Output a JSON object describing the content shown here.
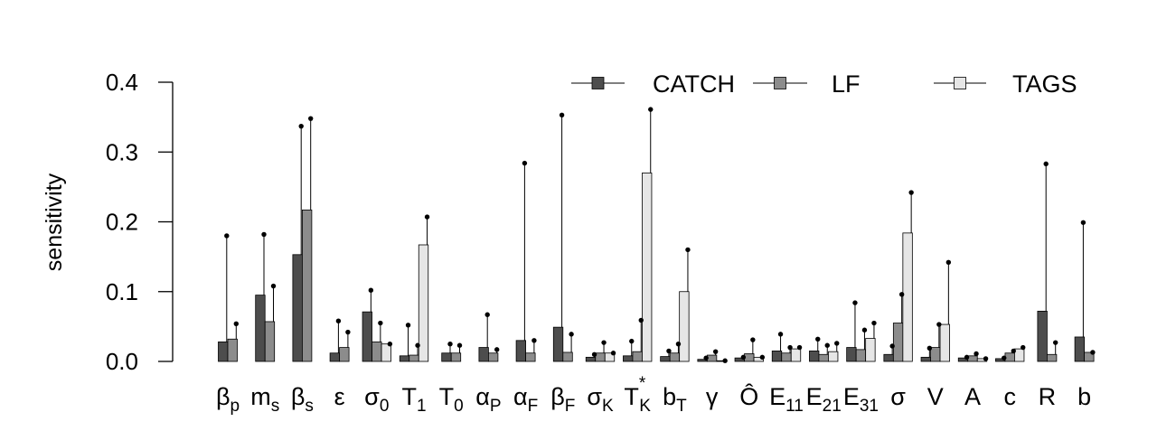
{
  "chart_data": {
    "type": "bar",
    "title": "",
    "xlabel": "",
    "ylabel": "sensitivity",
    "ylim": [
      0,
      0.4
    ],
    "yticks": [
      "0.0",
      "0.1",
      "0.2",
      "0.3",
      "0.4"
    ],
    "ytick_values": [
      0,
      0.1,
      0.2,
      0.3,
      0.4
    ],
    "grid": false,
    "legend_position": "top-right",
    "error_bars": "upper whisker with dot at tip",
    "categories": [
      {
        "id": "beta_p",
        "base": "β",
        "sub": "p",
        "sup": ""
      },
      {
        "id": "m_s",
        "base": "m",
        "sub": "s",
        "sup": ""
      },
      {
        "id": "beta_s",
        "base": "β",
        "sub": "s",
        "sup": ""
      },
      {
        "id": "epsilon",
        "base": "ε",
        "sub": "",
        "sup": ""
      },
      {
        "id": "sigma_0",
        "base": "σ",
        "sub": "0",
        "sup": ""
      },
      {
        "id": "T_1",
        "base": "T",
        "sub": "1",
        "sup": ""
      },
      {
        "id": "T_0",
        "base": "T",
        "sub": "0",
        "sup": ""
      },
      {
        "id": "alpha_P",
        "base": "α",
        "sub": "P",
        "sup": ""
      },
      {
        "id": "alpha_F",
        "base": "α",
        "sub": "F",
        "sup": ""
      },
      {
        "id": "beta_F",
        "base": "β",
        "sub": "F",
        "sup": ""
      },
      {
        "id": "sigma_K",
        "base": "σ",
        "sub": "K",
        "sup": ""
      },
      {
        "id": "T_K_star",
        "base": "T",
        "sub": "K",
        "sup": "*"
      },
      {
        "id": "b_T",
        "base": "b",
        "sub": "T",
        "sup": ""
      },
      {
        "id": "gamma",
        "base": "γ",
        "sub": "",
        "sup": ""
      },
      {
        "id": "O_hat",
        "base": "Ô",
        "sub": "",
        "sup": ""
      },
      {
        "id": "E_11",
        "base": "E",
        "sub": "11",
        "sup": ""
      },
      {
        "id": "E_21",
        "base": "E",
        "sub": "21",
        "sup": ""
      },
      {
        "id": "E_31",
        "base": "E",
        "sub": "31",
        "sup": ""
      },
      {
        "id": "sigma",
        "base": "σ",
        "sub": "",
        "sup": ""
      },
      {
        "id": "V",
        "base": "V",
        "sub": "",
        "sup": ""
      },
      {
        "id": "A",
        "base": "A",
        "sub": "",
        "sup": ""
      },
      {
        "id": "c",
        "base": "c",
        "sub": "",
        "sup": ""
      },
      {
        "id": "R",
        "base": "R",
        "sub": "",
        "sup": ""
      },
      {
        "id": "b",
        "base": "b",
        "sub": "",
        "sup": ""
      }
    ],
    "series": [
      {
        "name": "CATCH",
        "color": "#4d4d4d",
        "values": [
          0.028,
          0.095,
          0.153,
          0.012,
          0.071,
          0.008,
          0.012,
          0.02,
          0.03,
          0.049,
          0.006,
          0.008,
          0.007,
          0.003,
          0.005,
          0.015,
          0.015,
          0.02,
          0.01,
          0.006,
          0.005,
          0.004,
          0.072,
          0.035
        ],
        "upper": [
          0.18,
          0.182,
          0.337,
          0.058,
          0.102,
          0.052,
          0.025,
          0.067,
          0.284,
          0.353,
          0.01,
          0.029,
          0.015,
          0.005,
          0.006,
          0.039,
          0.032,
          0.084,
          0.022,
          0.019,
          0.006,
          0.005,
          0.283,
          0.199
        ]
      },
      {
        "name": "LF",
        "color": "#8c8c8c",
        "values": [
          0.032,
          0.057,
          0.217,
          0.02,
          0.028,
          0.009,
          0.012,
          0.012,
          0.012,
          0.013,
          0.012,
          0.014,
          0.012,
          0.009,
          0.011,
          0.012,
          0.01,
          0.017,
          0.055,
          0.02,
          0.008,
          0.012,
          0.01,
          0.013
        ],
        "upper": [
          0.054,
          0.108,
          0.348,
          0.042,
          0.055,
          0.023,
          0.023,
          0.017,
          0.03,
          0.039,
          0.027,
          0.059,
          0.025,
          0.014,
          0.031,
          0.02,
          0.023,
          0.045,
          0.096,
          0.053,
          0.011,
          0.015,
          0.027,
          0.013
        ]
      },
      {
        "name": "TAGS",
        "color": "#e6e6e6",
        "values": [
          null,
          null,
          null,
          null,
          0.025,
          0.167,
          null,
          null,
          null,
          null,
          0.012,
          0.27,
          0.1,
          0.001,
          0.006,
          0.018,
          0.014,
          0.033,
          0.184,
          0.053,
          0.004,
          0.018,
          null,
          null
        ],
        "upper": [
          null,
          null,
          null,
          null,
          0.025,
          0.207,
          null,
          null,
          null,
          null,
          0.012,
          0.361,
          0.16,
          0.001,
          0.006,
          0.02,
          0.026,
          0.055,
          0.242,
          0.142,
          0.004,
          0.02,
          null,
          null
        ]
      }
    ]
  }
}
